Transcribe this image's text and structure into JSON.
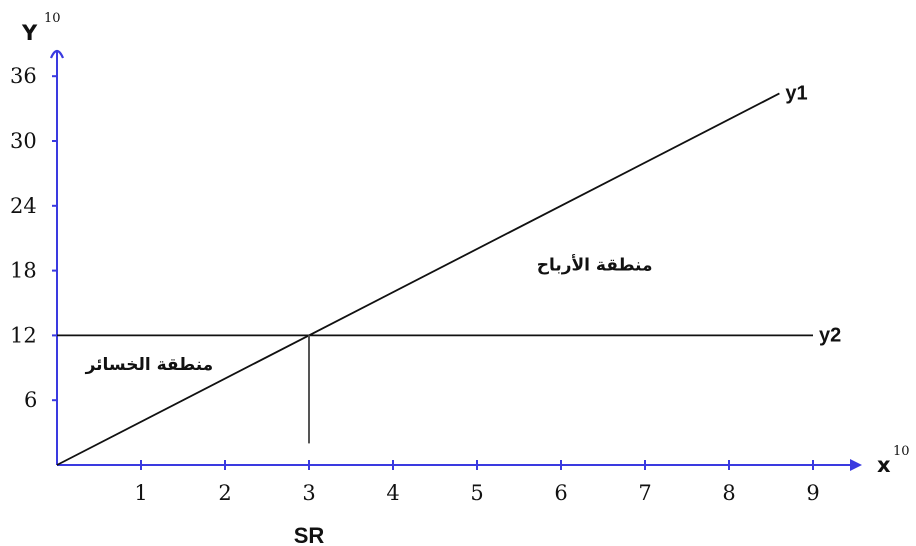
{
  "chart_data": {
    "type": "line",
    "x_axis": {
      "label": "x",
      "exponent": "10",
      "ticks": [
        1,
        2,
        3,
        4,
        5,
        6,
        7,
        8,
        9
      ],
      "range": [
        0,
        9.6
      ],
      "color": "#3a3ae0"
    },
    "y_axis": {
      "label": "Y",
      "exponent": "10",
      "ticks": [
        6,
        12,
        18,
        24,
        30,
        36
      ],
      "range": [
        0,
        38
      ],
      "color": "#3a3ae0"
    },
    "series": [
      {
        "name": "y1",
        "x": [
          0,
          8.6
        ],
        "y": [
          0,
          34.4
        ],
        "color": "#111111"
      },
      {
        "name": "y2",
        "x": [
          0,
          9
        ],
        "y": [
          12,
          12
        ],
        "color": "#111111"
      }
    ],
    "sr_marker": {
      "label": "SR",
      "x": 3,
      "y_top": 12,
      "y_bottom": 2
    },
    "annotations": [
      {
        "text": "منطقة الأرباح",
        "x": 6.4,
        "y": 18
      },
      {
        "text": "منطقة الخسائر",
        "x": 1.1,
        "y": 8.8
      }
    ],
    "grid": false
  }
}
